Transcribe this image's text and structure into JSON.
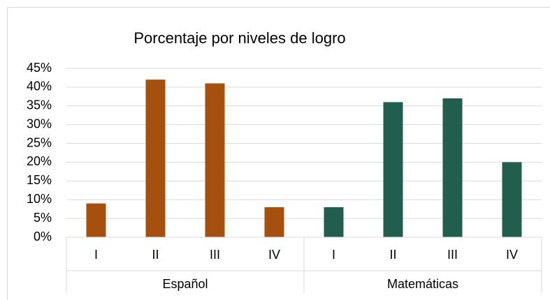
{
  "chart_data": {
    "type": "bar",
    "title": "Porcentaje por niveles de logro",
    "groups": [
      {
        "name": "Español",
        "categories": [
          "I",
          "II",
          "III",
          "IV"
        ],
        "values": [
          9,
          42,
          41,
          8
        ],
        "color": "#a5500f"
      },
      {
        "name": "Matemáticas",
        "categories": [
          "I",
          "II",
          "III",
          "IV"
        ],
        "values": [
          8,
          36,
          37,
          20
        ],
        "color": "#225e4e"
      }
    ],
    "ylim": [
      0,
      45
    ],
    "yticks": [
      {
        "value": 0,
        "label": "0%"
      },
      {
        "value": 5,
        "label": "5%"
      },
      {
        "value": 10,
        "label": "10%"
      },
      {
        "value": 15,
        "label": "15%"
      },
      {
        "value": 20,
        "label": "20%"
      },
      {
        "value": 25,
        "label": "25%"
      },
      {
        "value": 30,
        "label": "30%"
      },
      {
        "value": 35,
        "label": "35%"
      },
      {
        "value": 40,
        "label": "40%"
      },
      {
        "value": 45,
        "label": "45%"
      }
    ],
    "grid": true
  }
}
